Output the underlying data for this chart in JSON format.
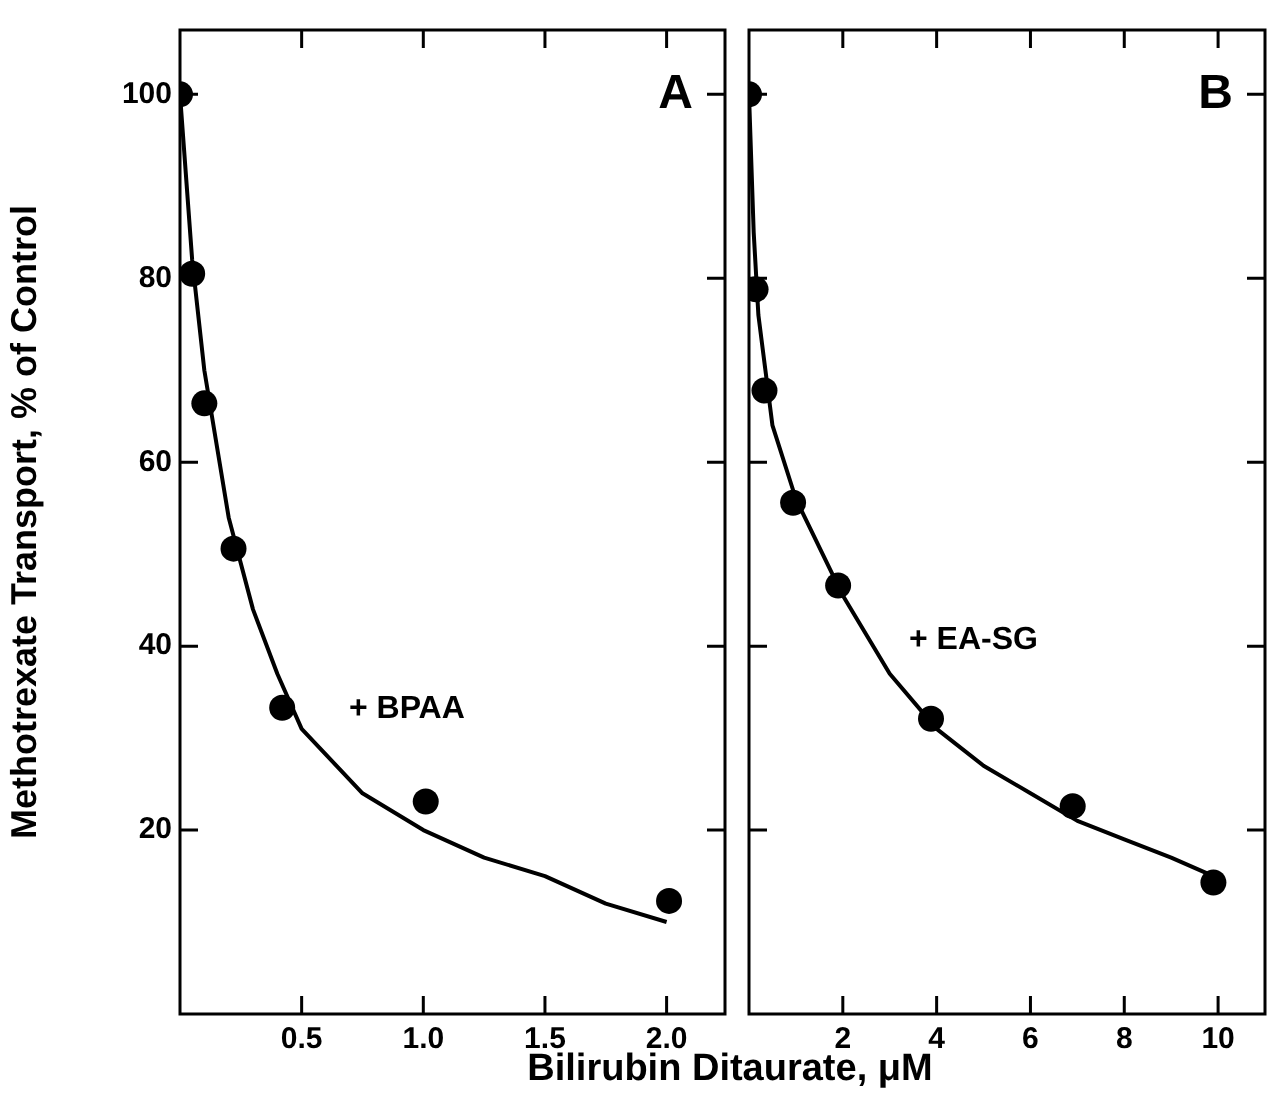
{
  "chart_data": [
    {
      "type": "scatter",
      "ylabel": "Methotrexate Transport, % of Control",
      "xlabel": "Bilirubin Ditaurate, μM",
      "annotations": [
        "A",
        "+ BPAA"
      ],
      "xlim": [
        0,
        2.24
      ],
      "xticks": [
        0.5,
        {
          "value": 1,
          "label": "1.0"
        },
        1.5,
        {
          "value": 2,
          "label": "2.0"
        }
      ],
      "ylim": [
        0,
        107
      ],
      "yticks": [
        20,
        40,
        60,
        80,
        100
      ],
      "marker": "circle",
      "grid": false,
      "legend": false,
      "series": [
        {
          "type": "line",
          "color": "#000000",
          "marker": "none",
          "x": [
            0,
            0.05,
            0.1,
            0.2,
            0.3,
            0.4,
            0.5,
            0.75,
            1.0,
            1.25,
            1.5,
            1.75,
            2.0
          ],
          "values": [
            100,
            82,
            70,
            54,
            44,
            37,
            31,
            24,
            20,
            17,
            15,
            12,
            10
          ]
        },
        {
          "type": "scatter",
          "color": "#000000",
          "x": [
            0,
            0.05,
            0.1,
            0.22,
            0.42,
            1.01,
            2.01
          ],
          "values": [
            100,
            80.5,
            66.4,
            50.6,
            33.3,
            23.1,
            12.3
          ]
        }
      ]
    },
    {
      "type": "scatter",
      "annotations": [
        "B",
        "+ EA-SG"
      ],
      "xlim": [
        0,
        11
      ],
      "xticks": [
        2,
        4,
        6,
        8,
        10
      ],
      "ylim": [
        0,
        107
      ],
      "yticks": [
        20,
        40,
        60,
        80,
        100
      ],
      "tick_labels": "x",
      "marker": "circle",
      "grid": false,
      "legend": false,
      "series": [
        {
          "type": "line",
          "color": "#000000",
          "marker": "none",
          "x": [
            0,
            0.1,
            0.2,
            0.5,
            1,
            2,
            3,
            4,
            5,
            6,
            7,
            8,
            9,
            9.9
          ],
          "values": [
            100,
            85,
            76,
            64,
            56,
            45.5,
            37,
            31,
            27,
            24,
            21,
            19,
            17,
            15
          ]
        },
        {
          "type": "scatter",
          "color": "#000000",
          "x": [
            0,
            0.14,
            0.33,
            0.94,
            1.9,
            3.88,
            6.9,
            9.9
          ],
          "values": [
            100,
            78.8,
            67.8,
            55.6,
            46.6,
            32.1,
            22.6,
            14.3
          ]
        }
      ]
    }
  ]
}
